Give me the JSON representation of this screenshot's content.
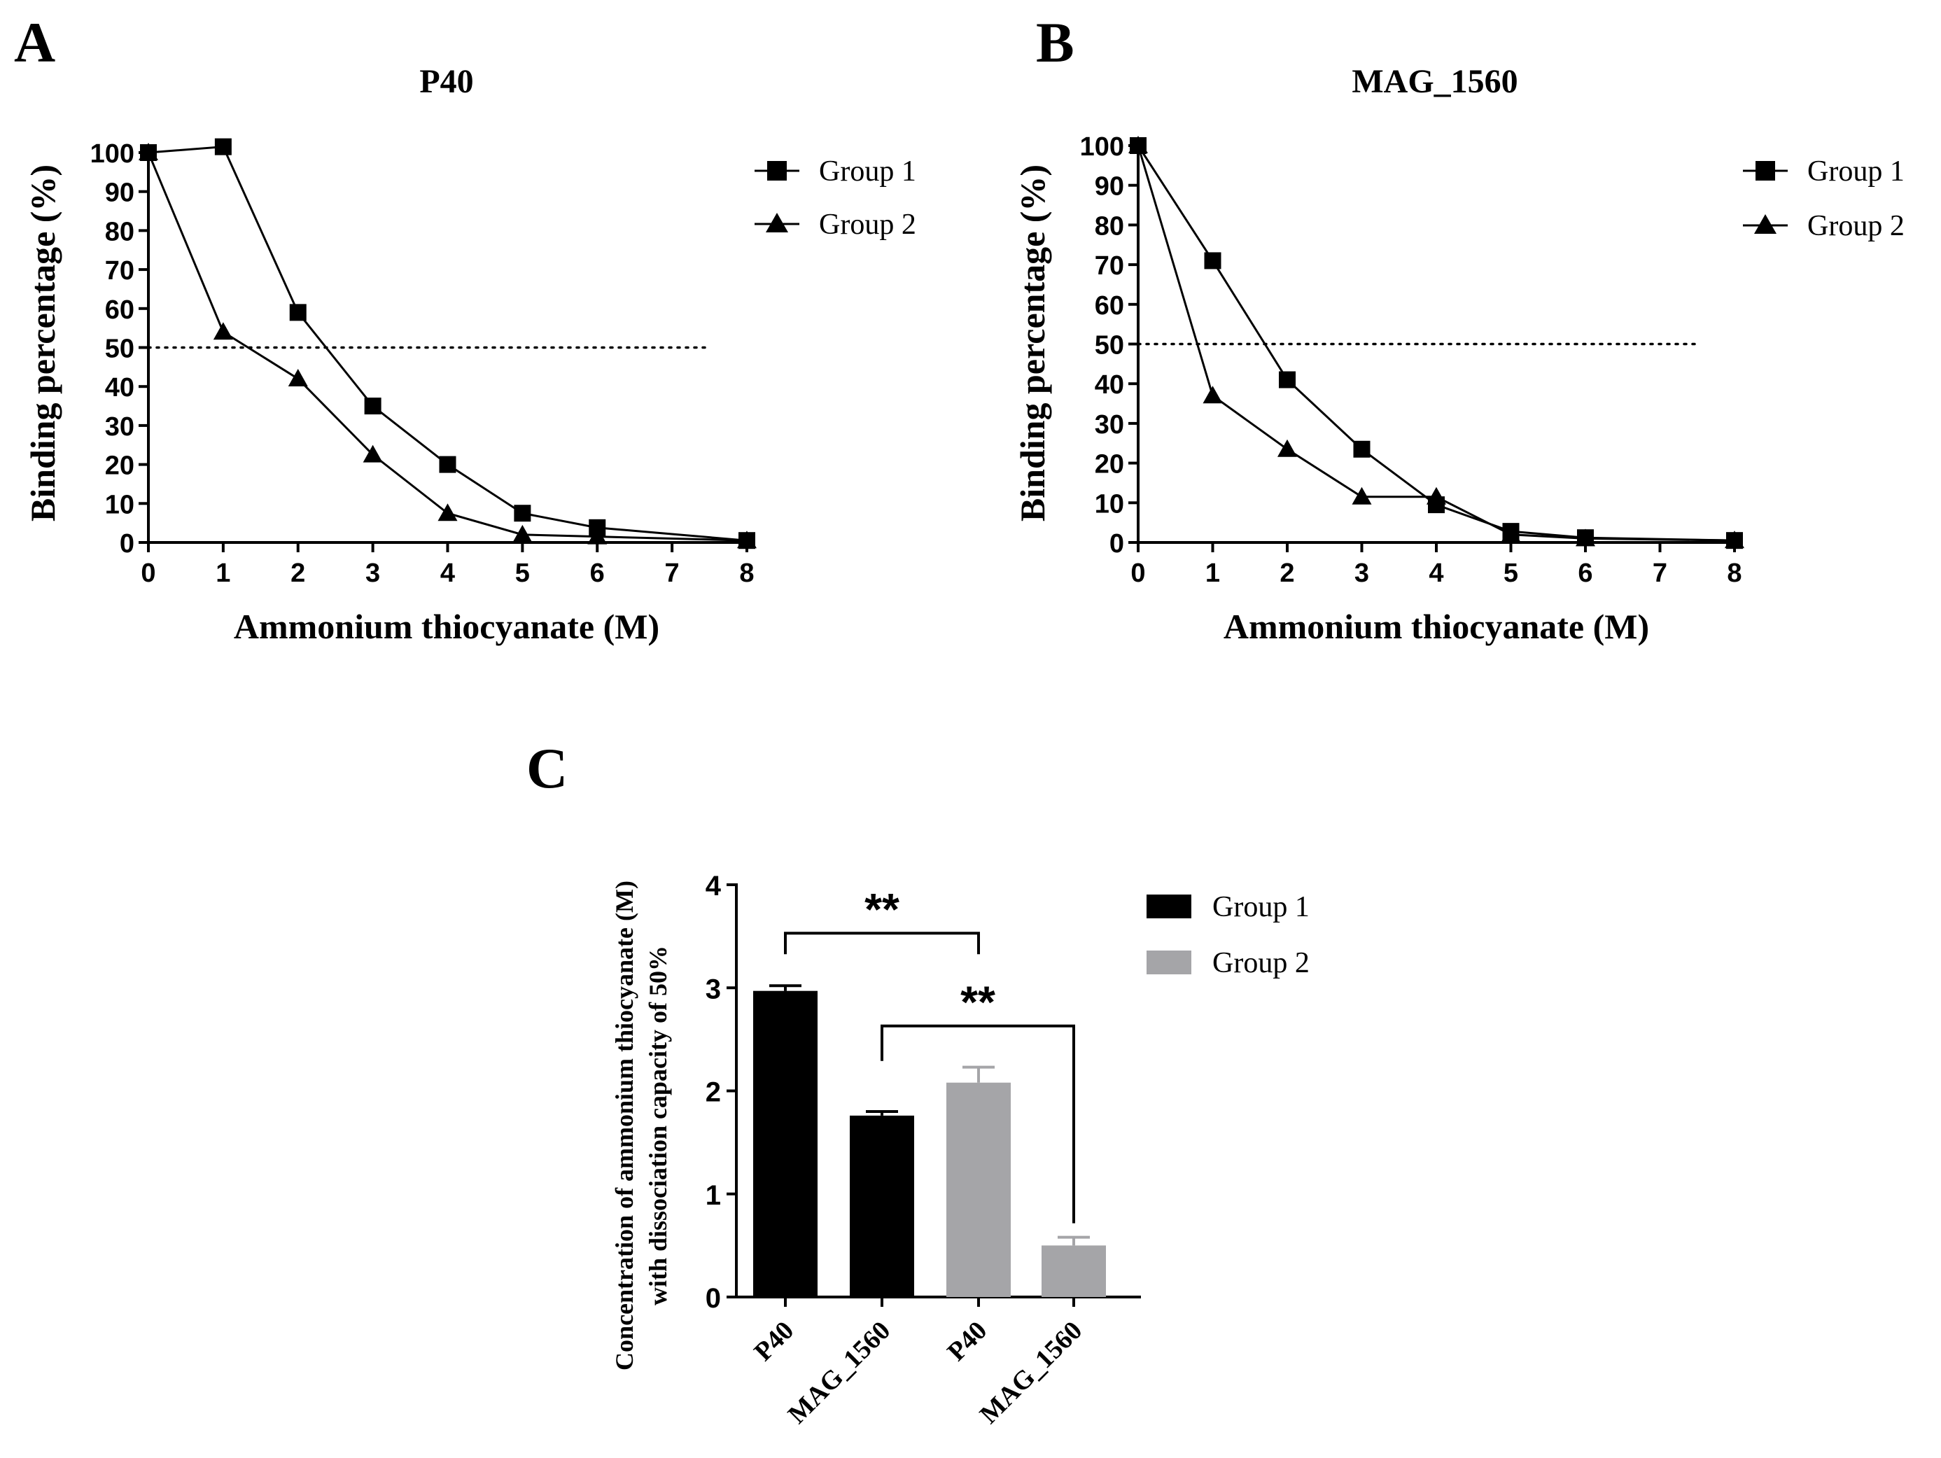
{
  "chart_data": [
    {
      "panel_label": "A",
      "type": "line",
      "title": "P40",
      "xlabel": "Ammonium thiocyanate (M)",
      "ylabel": "Binding percentage (%)",
      "xlim": [
        0,
        8
      ],
      "ylim": [
        0,
        100
      ],
      "x_ticks": [
        0,
        1,
        2,
        3,
        4,
        5,
        6,
        7,
        8
      ],
      "y_ticks": [
        0,
        10,
        20,
        30,
        40,
        50,
        60,
        70,
        80,
        90,
        100
      ],
      "reference_line_y": 50,
      "legend_position": "top-right",
      "series": [
        {
          "name": "Group 1",
          "marker": "square",
          "x": [
            0,
            1,
            2,
            3,
            4,
            5,
            6,
            8
          ],
          "values": [
            100,
            101.5,
            59,
            35,
            20,
            7.5,
            3.8,
            0.5
          ]
        },
        {
          "name": "Group 2",
          "marker": "triangle",
          "x": [
            0,
            1,
            2,
            3,
            4,
            5,
            6,
            8
          ],
          "values": [
            100,
            54,
            42,
            22.5,
            7.5,
            2,
            1.5,
            0.5
          ]
        }
      ]
    },
    {
      "panel_label": "B",
      "type": "line",
      "title": "MAG_1560",
      "xlabel": "Ammonium thiocyanate (M)",
      "ylabel": "Binding percentage (%)",
      "xlim": [
        0,
        8
      ],
      "ylim": [
        0,
        100
      ],
      "x_ticks": [
        0,
        1,
        2,
        3,
        4,
        5,
        6,
        7,
        8
      ],
      "y_ticks": [
        0,
        10,
        20,
        30,
        40,
        50,
        60,
        70,
        80,
        90,
        100
      ],
      "reference_line_y": 50,
      "legend_position": "top-right",
      "series": [
        {
          "name": "Group 1",
          "marker": "square",
          "x": [
            0,
            1,
            2,
            3,
            4,
            5,
            6,
            8
          ],
          "values": [
            100,
            71,
            41,
            23.5,
            9.5,
            2.8,
            1.2,
            0.5
          ]
        },
        {
          "name": "Group 2",
          "marker": "triangle",
          "x": [
            0,
            1,
            2,
            3,
            4,
            5,
            6,
            8
          ],
          "values": [
            100,
            37,
            23.5,
            11.5,
            11.5,
            2,
            1,
            0.5
          ]
        }
      ]
    },
    {
      "panel_label": "C",
      "type": "bar",
      "title": "",
      "xlabel": "",
      "ylabel": [
        "Concentration of ammonium thiocyanate (M)",
        "with dissociation capacity of 50%"
      ],
      "ylim": [
        0,
        4
      ],
      "y_ticks": [
        0,
        1,
        2,
        3,
        4
      ],
      "categories": [
        "P40",
        "MAG_1560",
        "P40",
        "MAG_1560"
      ],
      "values": [
        2.97,
        1.76,
        2.08,
        0.5
      ],
      "errors": [
        0.05,
        0.04,
        0.15,
        0.08
      ],
      "bar_groups": [
        "Group 1",
        "Group 1",
        "Group 2",
        "Group 2"
      ],
      "legend": [
        {
          "name": "Group 1",
          "color": "#000000"
        },
        {
          "name": "Group 2",
          "color": "#a5a5a8"
        }
      ],
      "legend_position": "top-right",
      "significance": [
        {
          "label": "**",
          "from_bar": 0,
          "to_bar": 2,
          "level": 3.53
        },
        {
          "label": "**",
          "from_bar": 1,
          "to_bar": 3,
          "level": 2.63
        }
      ]
    }
  ]
}
